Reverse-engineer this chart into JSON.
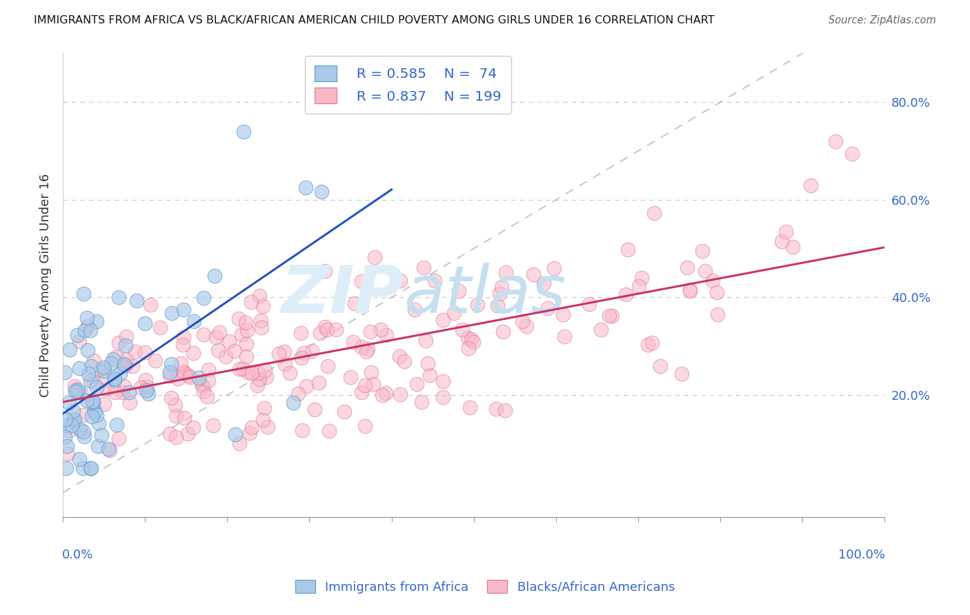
{
  "title": "IMMIGRANTS FROM AFRICA VS BLACK/AFRICAN AMERICAN CHILD POVERTY AMONG GIRLS UNDER 16 CORRELATION CHART",
  "source": "Source: ZipAtlas.com",
  "ylabel": "Child Poverty Among Girls Under 16",
  "yticks": [
    "20.0%",
    "40.0%",
    "60.0%",
    "80.0%"
  ],
  "ytick_vals": [
    0.2,
    0.4,
    0.6,
    0.8
  ],
  "legend_blue_r": "R = 0.585",
  "legend_blue_n": "N =  74",
  "legend_pink_r": "R = 0.837",
  "legend_pink_n": "N = 199",
  "color_blue_fill": "#aac8e8",
  "color_blue_edge": "#5599cc",
  "color_pink_fill": "#f8b8c8",
  "color_pink_edge": "#e07090",
  "color_blue_line": "#2255bb",
  "color_pink_line": "#cc3366",
  "color_diag": "#bbbbbb",
  "color_legend_text": "#3366cc",
  "color_axis_label": "#3366cc",
  "watermark_zip": "ZIP",
  "watermark_atlas": "atlas",
  "watermark_color_zip": "#d8eaf5",
  "watermark_color_atlas": "#b8d8ee",
  "background_color": "#ffffff",
  "xlim": [
    0.0,
    1.0
  ],
  "ylim": [
    -0.05,
    0.9
  ],
  "n_blue": 74,
  "n_pink": 199
}
